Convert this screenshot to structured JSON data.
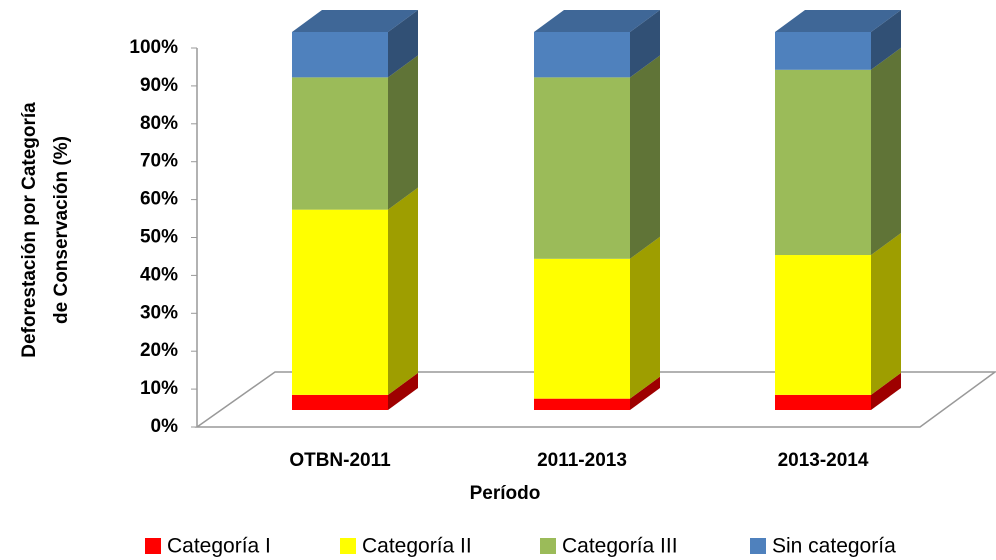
{
  "chart_data": {
    "type": "bar3d_stacked",
    "x_label": "Período",
    "y_label": [
      "Deforestación por Categoría",
      "de Conservación (%)"
    ],
    "categories": [
      "OTBN-2011",
      "2011-2013",
      "2013-2014"
    ],
    "series": [
      {
        "name": "Categoría I",
        "color": "#ff0000",
        "values": [
          4,
          3,
          4
        ]
      },
      {
        "name": "Categoría II",
        "color": "#ffff00",
        "values": [
          49,
          37,
          37
        ]
      },
      {
        "name": "Categoría III",
        "color": "#9bbb59",
        "values": [
          35,
          48,
          49
        ]
      },
      {
        "name": "Sin categoría",
        "color": "#4f81bd",
        "values": [
          12,
          12,
          10
        ]
      }
    ],
    "ylim": [
      0,
      100
    ],
    "yticks": [
      {
        "value": 0,
        "label": "0%"
      },
      {
        "value": 10,
        "label": "10%"
      },
      {
        "value": 20,
        "label": "20%"
      },
      {
        "value": 30,
        "label": "30%"
      },
      {
        "value": 40,
        "label": "40%"
      },
      {
        "value": 50,
        "label": "50%"
      },
      {
        "value": 60,
        "label": "60%"
      },
      {
        "value": 70,
        "label": "70%"
      },
      {
        "value": 80,
        "label": "80%"
      },
      {
        "value": 90,
        "label": "90%"
      },
      {
        "value": 100,
        "label": "100%"
      }
    ]
  }
}
